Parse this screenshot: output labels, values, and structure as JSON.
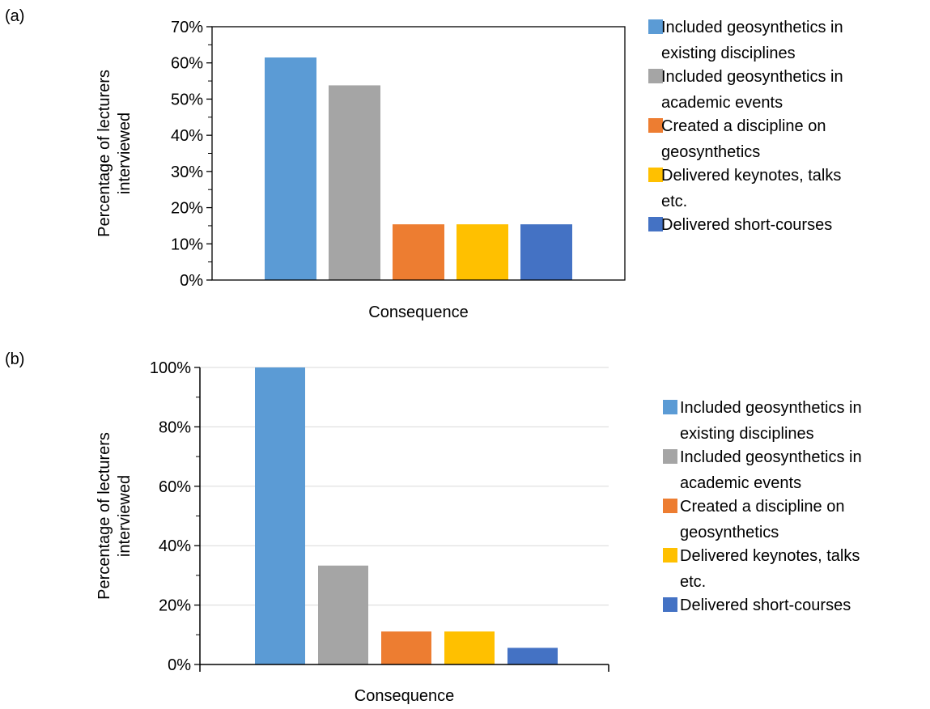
{
  "colors": {
    "existing": "#5B9BD5",
    "events": "#A5A5A5",
    "discipline": "#ED7D31",
    "keynotes": "#FFC000",
    "short": "#4472C4"
  },
  "chart_data": [
    {
      "type": "bar",
      "panel": "(a)",
      "xlabel": "Consequence",
      "ylabel_lines": [
        "Percentage of lecturers",
        "interviewed"
      ],
      "yticks": [
        "0%",
        "10%",
        "20%",
        "30%",
        "40%",
        "50%",
        "60%",
        "70%"
      ],
      "ylim": [
        0,
        70
      ],
      "grid": false,
      "legend_position": "right",
      "series": [
        {
          "name": "Included geosynthetics in existing disciplines",
          "lines": [
            "Included geosynthetics in",
            "existing disciplines"
          ],
          "color_key": "existing",
          "value": 61.5
        },
        {
          "name": "Included geosynthetics in academic events",
          "lines": [
            "Included geosynthetics in",
            "academic events"
          ],
          "color_key": "events",
          "value": 53.8
        },
        {
          "name": "Created a discipline on geosynthetics",
          "lines": [
            "Created a discipline on",
            "geosynthetics"
          ],
          "color_key": "discipline",
          "value": 15.4
        },
        {
          "name": "Delivered keynotes, talks etc.",
          "lines": [
            "Delivered keynotes, talks",
            "etc."
          ],
          "color_key": "keynotes",
          "value": 15.4
        },
        {
          "name": "Delivered short-courses",
          "lines": [
            "Delivered short-courses"
          ],
          "color_key": "short",
          "value": 15.4
        }
      ]
    },
    {
      "type": "bar",
      "panel": "(b)",
      "xlabel": "Consequence",
      "ylabel_lines": [
        "Percentage of lecturers",
        "interviewed"
      ],
      "yticks": [
        "0%",
        "20%",
        "40%",
        "60%",
        "80%",
        "100%"
      ],
      "ylim": [
        0,
        100
      ],
      "grid": true,
      "legend_position": "right",
      "series": [
        {
          "name": "Included geosynthetics in existing disciplines",
          "lines": [
            "Included geosynthetics in",
            "existing disciplines"
          ],
          "color_key": "existing",
          "value": 100
        },
        {
          "name": "Included geosynthetics in academic events",
          "lines": [
            "Included geosynthetics in",
            "academic events"
          ],
          "color_key": "events",
          "value": 33.3
        },
        {
          "name": "Created a discipline on geosynthetics",
          "lines": [
            "Created a discipline on",
            "geosynthetics"
          ],
          "color_key": "discipline",
          "value": 11.1
        },
        {
          "name": "Delivered keynotes, talks etc.",
          "lines": [
            "Delivered keynotes, talks",
            "etc."
          ],
          "color_key": "keynotes",
          "value": 11.1
        },
        {
          "name": "Delivered short-courses",
          "lines": [
            "Delivered short-courses"
          ],
          "color_key": "short",
          "value": 5.6
        }
      ]
    }
  ]
}
